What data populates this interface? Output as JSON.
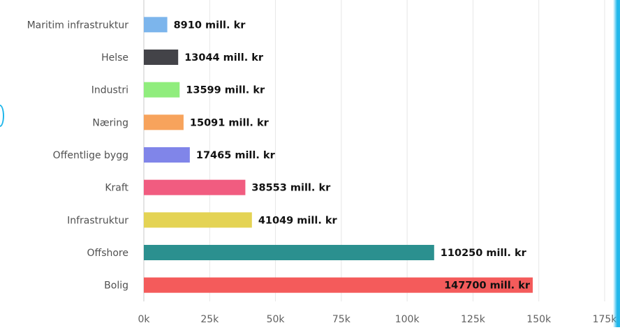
{
  "chart_data": {
    "type": "bar",
    "orientation": "horizontal",
    "title": "",
    "xlabel": "",
    "ylabel": "",
    "categories": [
      "Maritim infrastruktur",
      "Helse",
      "Industri",
      "Næring",
      "Offentlige bygg",
      "Kraft",
      "Infrastruktur",
      "Offshore",
      "Bolig"
    ],
    "values": [
      8910,
      13044,
      13599,
      15091,
      17465,
      38553,
      41049,
      110250,
      147700
    ],
    "data_labels": [
      "8910 mill. kr",
      "13044 mill. kr",
      "13599 mill. kr",
      "15091 mill. kr",
      "17465 mill. kr",
      "38553 mill. kr",
      "41049 mill. kr",
      "110250 mill. kr",
      "147700 mill. kr"
    ],
    "colors": [
      "#7cb5ec",
      "#434348",
      "#90ed7d",
      "#f7a35c",
      "#8085e9",
      "#f15c80",
      "#e4d354",
      "#2b908f",
      "#f45b5b"
    ],
    "xlim": [
      0,
      175000
    ],
    "x_ticks": [
      0,
      25000,
      50000,
      75000,
      100000,
      125000,
      150000,
      175000
    ],
    "x_tick_labels": [
      "0k",
      "25k",
      "50k",
      "75k",
      "100k",
      "125k",
      "150k",
      "175k"
    ],
    "grid": true,
    "legend": false
  }
}
